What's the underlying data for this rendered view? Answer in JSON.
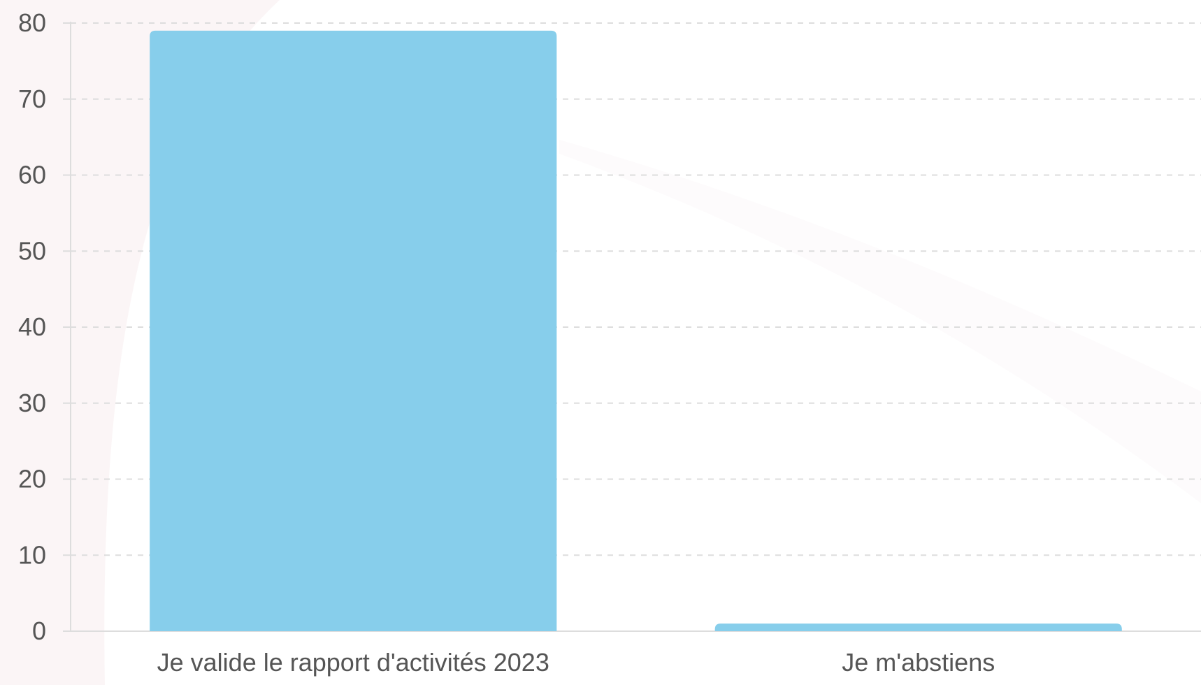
{
  "chart_data": {
    "type": "bar",
    "title": "",
    "xlabel": "",
    "ylabel": "",
    "categories": [
      "Je valide le rapport d'activités 2023",
      "Je m'abstiens"
    ],
    "values": [
      79,
      1
    ],
    "ylim": [
      0,
      80
    ],
    "yticks": [
      0,
      10,
      20,
      30,
      40,
      50,
      60,
      70,
      80
    ],
    "grid": true,
    "legend": "none",
    "colors": {
      "bar": "#87ceeb",
      "grid": "#dddddd",
      "axis": "#dddddd",
      "text": "#555555"
    }
  }
}
